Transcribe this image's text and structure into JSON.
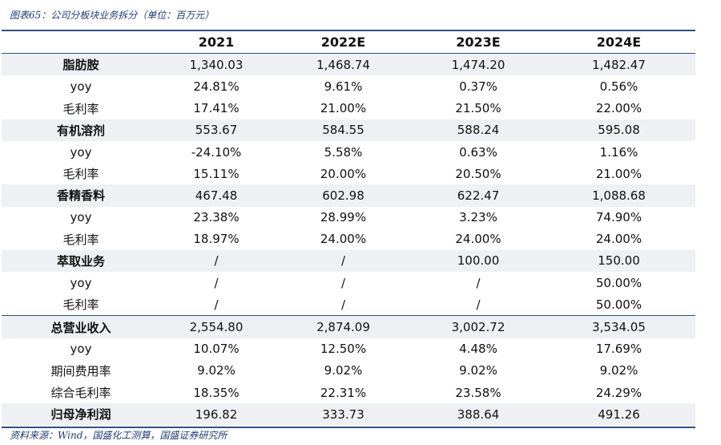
{
  "caption": "图表65：公司分板块业务拆分（单位：百万元）",
  "headers": [
    "",
    "2021",
    "2022E",
    "2023E",
    "2024E"
  ],
  "rows": [
    {
      "label": "脂肪胺",
      "values": [
        "1,340.03",
        "1,468.74",
        "1,474.20",
        "1,482.47"
      ]
    },
    {
      "label": "yoy",
      "values": [
        "24.81%",
        "9.61%",
        "0.37%",
        "0.56%"
      ]
    },
    {
      "label": "毛利率",
      "values": [
        "17.41%",
        "21.00%",
        "21.50%",
        "22.00%"
      ]
    },
    {
      "label": "有机溶剂",
      "values": [
        "553.67",
        "584.55",
        "588.24",
        "595.08"
      ]
    },
    {
      "label": "yoy",
      "values": [
        "-24.10%",
        "5.58%",
        "0.63%",
        "1.16%"
      ]
    },
    {
      "label": "毛利率",
      "values": [
        "15.11%",
        "20.00%",
        "20.50%",
        "21.00%"
      ]
    },
    {
      "label": "香精香料",
      "values": [
        "467.48",
        "602.98",
        "622.47",
        "1,088.68"
      ]
    },
    {
      "label": "yoy",
      "values": [
        "23.38%",
        "28.99%",
        "3.23%",
        "74.90%"
      ]
    },
    {
      "label": "毛利率",
      "values": [
        "18.97%",
        "24.00%",
        "24.00%",
        "24.00%"
      ]
    },
    {
      "label": "萃取业务",
      "values": [
        "/",
        "/",
        "100.00",
        "150.00"
      ]
    },
    {
      "label": "yoy",
      "values": [
        "/",
        "/",
        "/",
        "50.00%"
      ]
    },
    {
      "label": "毛利率",
      "values": [
        "/",
        "/",
        "/",
        "50.00%"
      ]
    },
    {
      "label": "总营业收入",
      "values": [
        "2,554.80",
        "2,874.09",
        "3,002.72",
        "3,534.05"
      ]
    },
    {
      "label": "yoy",
      "values": [
        "10.07%",
        "12.50%",
        "4.48%",
        "17.69%"
      ]
    },
    {
      "label": "期间费用率",
      "values": [
        "9.02%",
        "9.02%",
        "9.02%",
        "9.02%"
      ]
    },
    {
      "label": "综合毛利率",
      "values": [
        "18.35%",
        "22.31%",
        "23.58%",
        "24.29%"
      ]
    },
    {
      "label": "归母净利润",
      "values": [
        "196.82",
        "333.73",
        "388.64",
        "491.26"
      ]
    }
  ],
  "source": "资料来源：Wind，国盛化工测算，国盛证券研究所",
  "colors": {
    "accent": "#2f4f8f",
    "caption": "#1f3b74",
    "shade": "#eef0f4"
  }
}
